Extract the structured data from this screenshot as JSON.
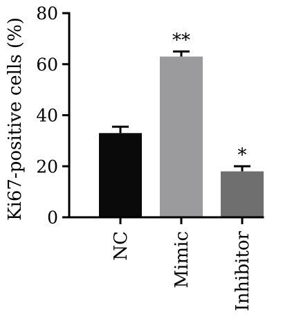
{
  "chart_data": {
    "type": "bar",
    "ylabel": "Ki67-positive cells (%)",
    "xlabel": "",
    "ylim": [
      0,
      80
    ],
    "yticks": [
      0,
      20,
      40,
      60,
      80
    ],
    "categories": [
      "NC",
      "Mimic",
      "Inhibitor"
    ],
    "values": [
      33,
      63,
      18
    ],
    "errors": [
      2.5,
      2.0,
      2.0
    ],
    "significance": [
      "",
      "**",
      "*"
    ],
    "colors": [
      "#0a0a0a",
      "#9b9b9d",
      "#6f6f70"
    ],
    "grid": false,
    "legend": "none"
  }
}
